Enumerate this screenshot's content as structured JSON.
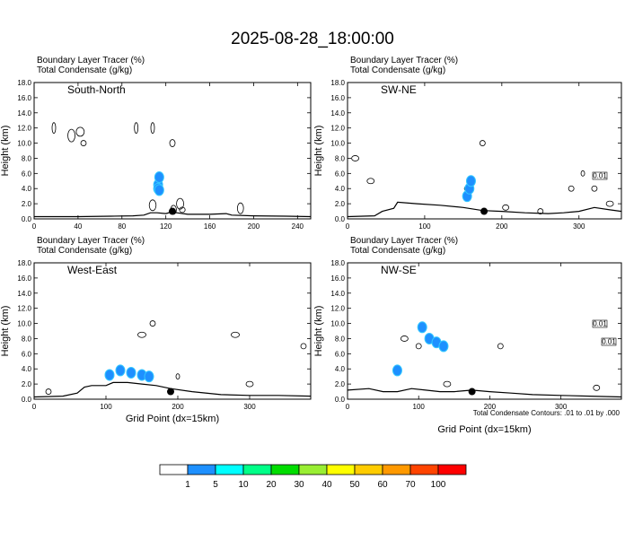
{
  "title": "2025-08-28_18:00:00",
  "footnote": "Total Condensate Contours: .01 to .01 by .000",
  "colors": {
    "terrain": "#000000",
    "contour": "#000000",
    "tracer": "#1e90ff",
    "tracer_light": "#33c7ff",
    "marker": "#000000"
  },
  "colorbar": {
    "colors": [
      "#ffffff",
      "#1e90ff",
      "#00ffff",
      "#00ff88",
      "#00dd00",
      "#99ee33",
      "#ffff00",
      "#ffcc00",
      "#ff9900",
      "#ff4400",
      "#ff0000"
    ],
    "labels": [
      "1",
      "5",
      "10",
      "20",
      "30",
      "40",
      "50",
      "60",
      "70",
      "100"
    ]
  },
  "chart_data": [
    {
      "type": "contour",
      "panel_title": "South-North",
      "header_line1": "Boundary Layer Tracer   (%)",
      "header_line2": "Total Condensate   (g/kg)",
      "xlabel": "",
      "ylabel": "Height (km)",
      "xlim": [
        0,
        252
      ],
      "ylim": [
        0,
        18
      ],
      "xticks": [
        0,
        40,
        80,
        120,
        160,
        200,
        240
      ],
      "yticks": [
        "0.0",
        "2.0",
        "4.0",
        "6.0",
        "8.0",
        "10.0",
        "12.0",
        "14.0",
        "16.0",
        "18.0"
      ],
      "terrain": [
        [
          0,
          0.3
        ],
        [
          40,
          0.3
        ],
        [
          70,
          0.35
        ],
        [
          90,
          0.4
        ],
        [
          100,
          0.5
        ],
        [
          106,
          0.8
        ],
        [
          112,
          0.8
        ],
        [
          120,
          0.7
        ],
        [
          125,
          0.9
        ],
        [
          130,
          0.8
        ],
        [
          140,
          0.6
        ],
        [
          160,
          0.6
        ],
        [
          175,
          0.7
        ],
        [
          180,
          0.5
        ],
        [
          200,
          0.4
        ],
        [
          230,
          0.35
        ],
        [
          252,
          0.3
        ]
      ],
      "tracer": [
        [
          113,
          4.5
        ],
        [
          114,
          5.5
        ],
        [
          113,
          4.0
        ],
        [
          114,
          3.8
        ]
      ],
      "clouds": [
        [
          18,
          12
        ],
        [
          34,
          11
        ],
        [
          42,
          11.5
        ],
        [
          45,
          10
        ],
        [
          93,
          12
        ],
        [
          108,
          1.8
        ],
        [
          108,
          12
        ],
        [
          127,
          1.2
        ],
        [
          126,
          10
        ],
        [
          133,
          2.0
        ],
        [
          135,
          1.2
        ],
        [
          188,
          1.4
        ]
      ],
      "marker": [
        126,
        1.0
      ]
    },
    {
      "type": "contour",
      "panel_title": "SW-NE",
      "header_line1": "Boundary Layer Tracer   (%)",
      "header_line2": "Total Condensate   (g/kg)",
      "xlabel": "",
      "ylabel": "Height (km)",
      "xlim": [
        0,
        355
      ],
      "ylim": [
        0,
        18
      ],
      "xticks": [
        0,
        100,
        200,
        300
      ],
      "yticks": [
        "0.0",
        "2.0",
        "4.0",
        "6.0",
        "8.0",
        "10.0",
        "12.0",
        "14.0",
        "16.0",
        "18.0"
      ],
      "contour_labels": [
        "0.01"
      ],
      "terrain": [
        [
          0,
          0.3
        ],
        [
          35,
          0.4
        ],
        [
          45,
          1.0
        ],
        [
          60,
          1.4
        ],
        [
          65,
          2.2
        ],
        [
          90,
          2.0
        ],
        [
          120,
          1.8
        ],
        [
          150,
          1.5
        ],
        [
          175,
          1.1
        ],
        [
          200,
          1.0
        ],
        [
          230,
          0.8
        ],
        [
          260,
          0.7
        ],
        [
          280,
          0.8
        ],
        [
          300,
          1.0
        ],
        [
          320,
          1.5
        ],
        [
          340,
          1.2
        ],
        [
          355,
          1.0
        ]
      ],
      "tracer": [
        [
          155,
          3.0
        ],
        [
          158,
          4.0
        ],
        [
          160,
          5.0
        ]
      ],
      "clouds": [
        [
          10,
          8
        ],
        [
          30,
          5
        ],
        [
          175,
          10
        ],
        [
          155,
          4
        ],
        [
          205,
          1.5
        ],
        [
          250,
          1
        ],
        [
          290,
          4
        ],
        [
          305,
          6
        ],
        [
          320,
          4
        ],
        [
          340,
          2
        ]
      ],
      "marker": [
        177,
        1.0
      ]
    },
    {
      "type": "contour",
      "panel_title": "West-East",
      "header_line1": "Boundary Layer Tracer   (%)",
      "header_line2": "Total Condensate   (g/kg)",
      "xlabel": "Grid Point (dx=15km)",
      "ylabel": "Height (km)",
      "xlim": [
        0,
        385
      ],
      "ylim": [
        0,
        18
      ],
      "xticks": [
        0,
        100,
        200,
        300
      ],
      "yticks": [
        "0.0",
        "2.0",
        "4.0",
        "6.0",
        "8.0",
        "10.0",
        "12.0",
        "14.0",
        "16.0",
        "18.0"
      ],
      "terrain": [
        [
          0,
          0.3
        ],
        [
          40,
          0.4
        ],
        [
          60,
          0.8
        ],
        [
          70,
          1.6
        ],
        [
          80,
          1.8
        ],
        [
          100,
          1.8
        ],
        [
          110,
          2.2
        ],
        [
          130,
          2.2
        ],
        [
          150,
          2.0
        ],
        [
          170,
          1.8
        ],
        [
          190,
          1.4
        ],
        [
          220,
          1.0
        ],
        [
          260,
          0.6
        ],
        [
          300,
          0.5
        ],
        [
          340,
          0.5
        ],
        [
          385,
          0.4
        ]
      ],
      "tracer": [
        [
          105,
          3.2
        ],
        [
          120,
          3.8
        ],
        [
          135,
          3.5
        ],
        [
          150,
          3.2
        ],
        [
          160,
          3.0
        ]
      ],
      "clouds": [
        [
          20,
          1
        ],
        [
          150,
          8.5
        ],
        [
          165,
          10
        ],
        [
          200,
          3
        ],
        [
          280,
          8.5
        ],
        [
          375,
          7
        ],
        [
          300,
          2
        ]
      ],
      "marker": [
        190,
        1.0
      ]
    },
    {
      "type": "contour",
      "panel_title": "NW-SE",
      "header_line1": "Boundary Layer Tracer   (%)",
      "header_line2": "Total Condensate   (g/kg)",
      "xlabel": "Grid Point (dx=15km)",
      "ylabel": "Height (km)",
      "xlim": [
        0,
        385
      ],
      "ylim": [
        0,
        18
      ],
      "xticks": [
        0,
        100,
        200,
        300
      ],
      "yticks": [
        "0.0",
        "2.0",
        "4.0",
        "6.0",
        "8.0",
        "10.0",
        "12.0",
        "14.0",
        "16.0",
        "18.0"
      ],
      "contour_labels": [
        "0.01",
        "0.01"
      ],
      "terrain": [
        [
          0,
          1.2
        ],
        [
          30,
          1.4
        ],
        [
          50,
          1.0
        ],
        [
          70,
          1.0
        ],
        [
          90,
          1.4
        ],
        [
          110,
          1.2
        ],
        [
          130,
          1.0
        ],
        [
          150,
          1.0
        ],
        [
          175,
          1.2
        ],
        [
          200,
          1.0
        ],
        [
          230,
          0.8
        ],
        [
          260,
          0.6
        ],
        [
          300,
          0.5
        ],
        [
          340,
          0.4
        ],
        [
          385,
          0.3
        ]
      ],
      "tracer": [
        [
          70,
          3.8
        ],
        [
          105,
          9.5
        ],
        [
          115,
          8.0
        ],
        [
          125,
          7.5
        ],
        [
          135,
          7.0
        ]
      ],
      "clouds": [
        [
          70,
          4
        ],
        [
          80,
          8
        ],
        [
          100,
          7
        ],
        [
          140,
          2
        ],
        [
          215,
          7
        ],
        [
          350,
          1.5
        ],
        [
          355,
          10
        ]
      ],
      "marker": [
        175,
        1.0
      ]
    }
  ]
}
